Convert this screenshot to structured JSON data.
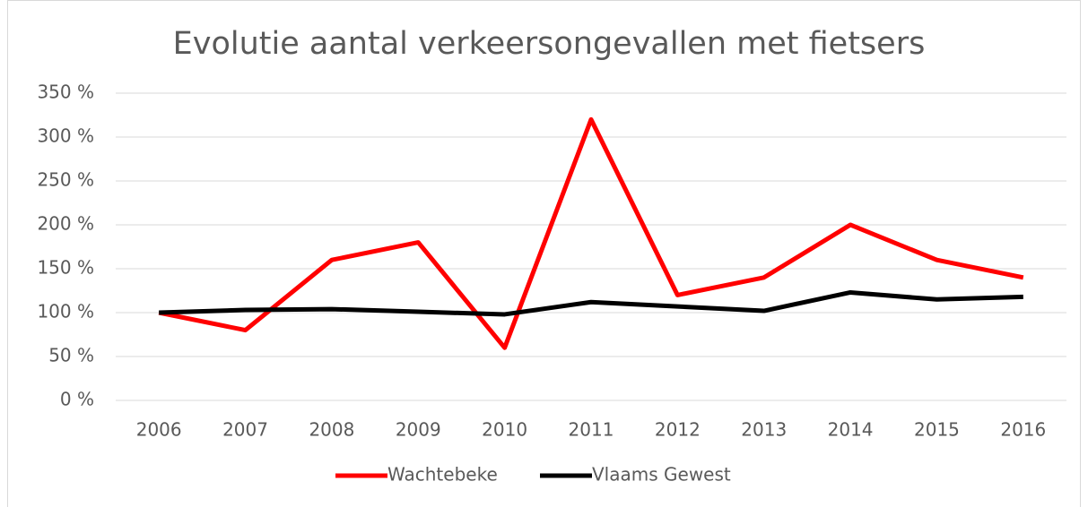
{
  "chart_data": {
    "type": "line",
    "title": "Evolutie aantal verkeersongevallen met fietsers",
    "categories": [
      "2006",
      "2007",
      "2008",
      "2009",
      "2010",
      "2011",
      "2012",
      "2013",
      "2014",
      "2015",
      "2016"
    ],
    "series": [
      {
        "name": "Wachtebeke",
        "color": "#ff0000",
        "values": [
          100,
          80,
          160,
          180,
          60,
          320,
          120,
          140,
          200,
          160,
          140
        ]
      },
      {
        "name": "Vlaams Gewest",
        "color": "#000000",
        "values": [
          100,
          103,
          104,
          101,
          98,
          112,
          107,
          102,
          123,
          115,
          118
        ]
      }
    ],
    "ylim": [
      0,
      350
    ],
    "yticks": [
      {
        "value": 0,
        "label": "0 %"
      },
      {
        "value": 50,
        "label": "50 %"
      },
      {
        "value": 100,
        "label": "100 %"
      },
      {
        "value": 150,
        "label": "150 %"
      },
      {
        "value": 200,
        "label": "200 %"
      },
      {
        "value": 250,
        "label": "250 %"
      },
      {
        "value": 300,
        "label": "300 %"
      },
      {
        "value": 350,
        "label": "350 %"
      }
    ],
    "grid": true,
    "legend": "bottom"
  }
}
